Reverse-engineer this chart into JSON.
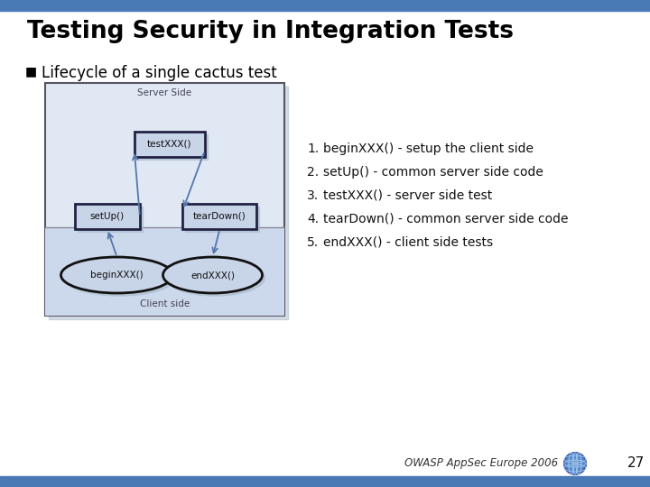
{
  "title": "Testing Security in Integration Tests",
  "subtitle": "Lifecycle of a single cactus test",
  "top_bar_color": "#4a7ab5",
  "bottom_bar_color": "#4a7ab5",
  "bg_color": "#ffffff",
  "title_color": "#000000",
  "subtitle_color": "#000000",
  "list_items": [
    "beginXXX() - setup the client side",
    "setUp() - common server side code",
    "testXXX() - server side test",
    "tearDown() - common server side code",
    "endXXX() - client side tests"
  ],
  "diagram": {
    "outer_bg": "#e0e8f4",
    "server_bg": "#e0e8f4",
    "client_bg": "#ccd8ec",
    "box_bg": "#c8d4e8",
    "box_border": "#222244",
    "oval_bg": "#c8d4e8",
    "oval_border": "#111111",
    "arrow_color": "#5577aa",
    "server_label": "Server Side",
    "client_label": "Client side",
    "nodes": {
      "testXXX": "testXXX()",
      "setUp": "setUp()",
      "tearDown": "tearDown()",
      "beginXXX": "beginXXX()",
      "endXXX": "endXXX()"
    }
  },
  "footer_text": "OWASP AppSec Europe 2006",
  "page_number": "27"
}
